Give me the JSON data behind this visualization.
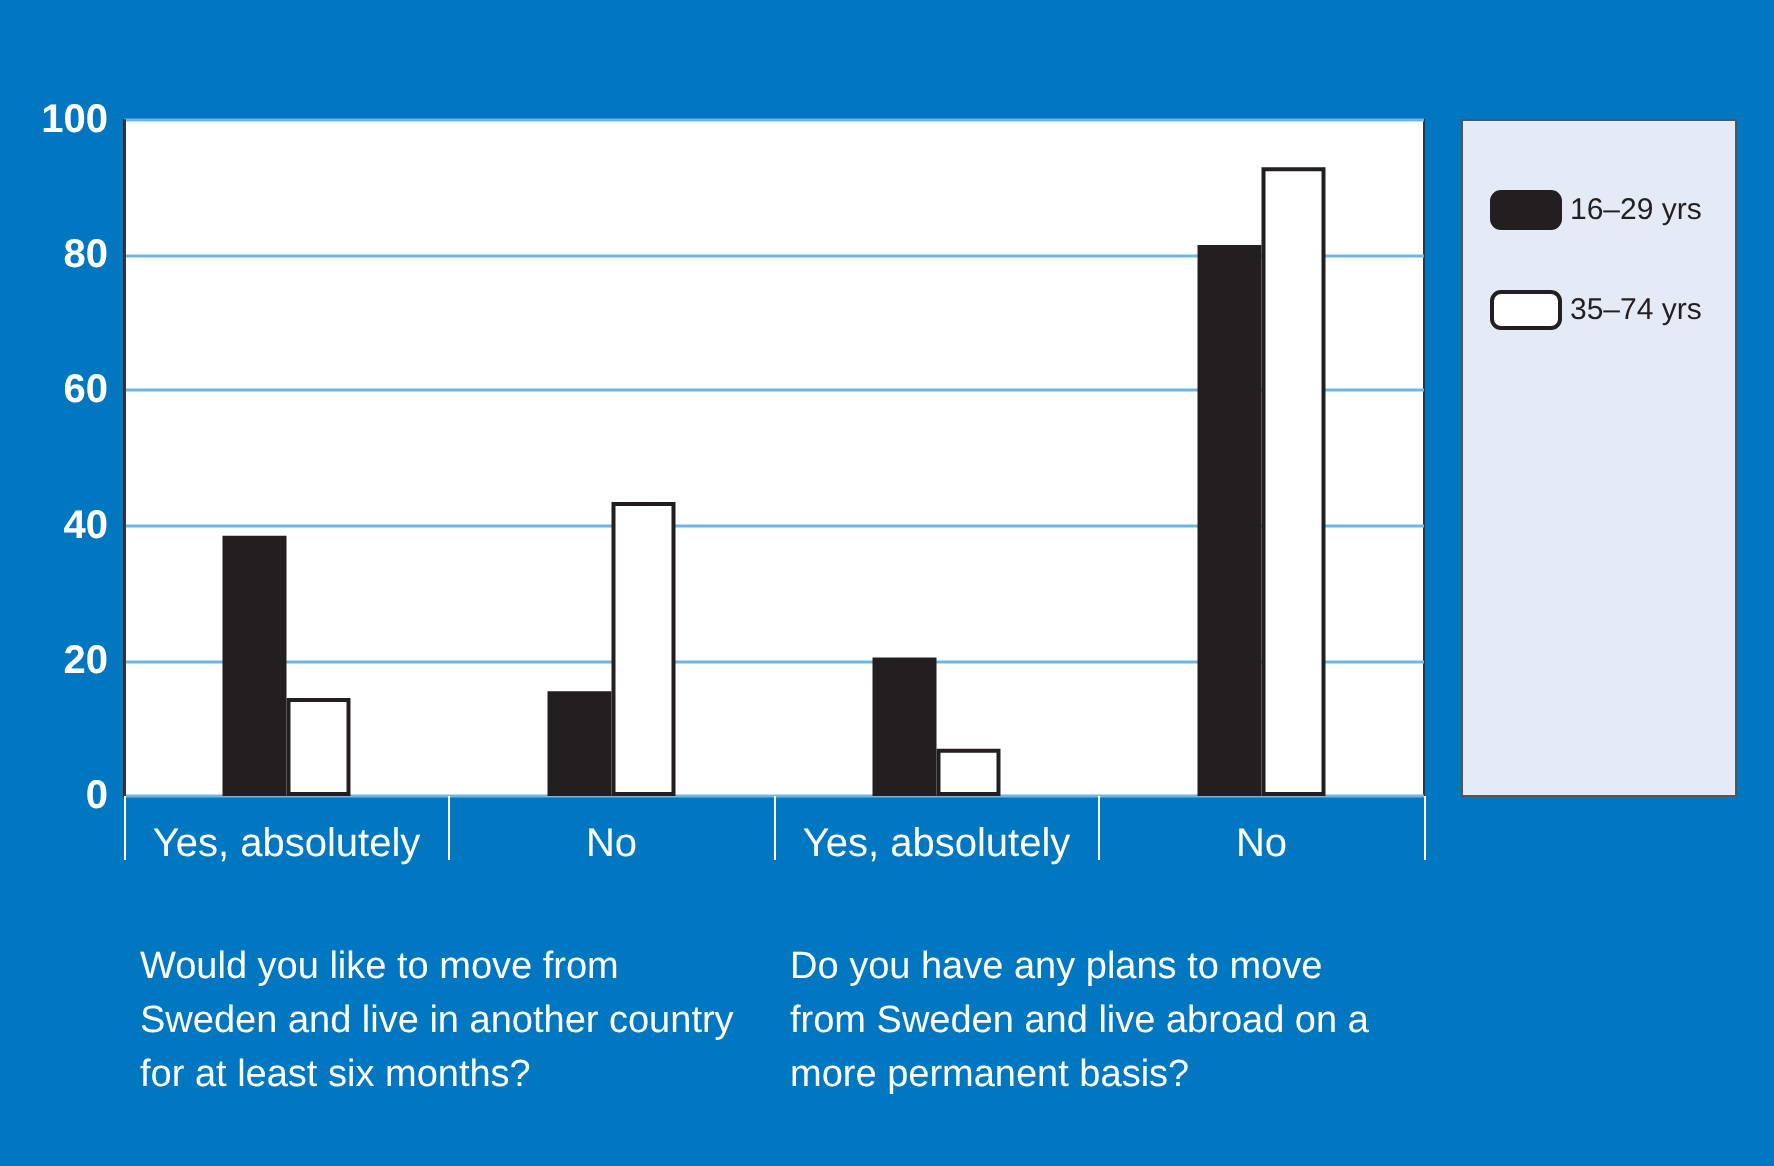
{
  "chart_data": {
    "type": "bar",
    "categories": [
      "Yes, absolutely",
      "No",
      "Yes, absolutely",
      "No"
    ],
    "series": [
      {
        "name": "16–29 yrs",
        "color": "#231f20",
        "values": [
          38.5,
          15.5,
          20.5,
          81.5
        ]
      },
      {
        "name": "35–74 yrs",
        "color": "#ffffff",
        "values": [
          14.5,
          43.5,
          7,
          93
        ]
      }
    ],
    "ylim": [
      0,
      100
    ],
    "yticks": [
      0,
      20,
      40,
      60,
      80,
      100
    ],
    "grid": "y",
    "legend": "right",
    "annotations": [
      "Would you like to move from Sweden and live in another country for at least six months?",
      "Do you have any plans to move from Sweden and live abroad on a more permanent basis?"
    ]
  }
}
